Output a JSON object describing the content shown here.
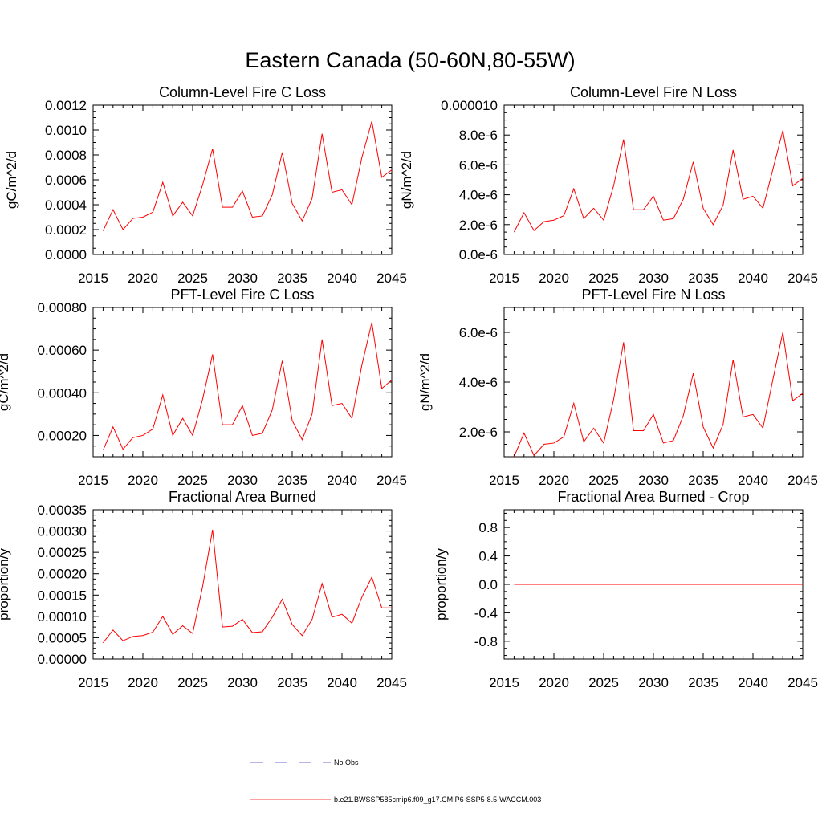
{
  "figure": {
    "title": "Eastern Canada (50-60N,80-55W)"
  },
  "legend": [
    {
      "label": "No Obs",
      "color": "#3c3cc8",
      "style": "dashed"
    },
    {
      "label": "b.e21.BWSSP585cmip6.f09_g17.CMIP6-SSP5-8.5-WACCM.003",
      "color": "#ff0000",
      "style": "solid"
    }
  ],
  "chart_data": [
    {
      "type": "line",
      "title": "Column-Level Fire C Loss",
      "xlabel": "",
      "ylabel": "gC/m^2/d",
      "xlim": [
        2015,
        2045
      ],
      "ylim": [
        0,
        0.0012
      ],
      "xticks": [
        2015,
        2020,
        2025,
        2030,
        2035,
        2040,
        2045
      ],
      "yticks": [
        0,
        0.0002,
        0.0004,
        0.0006,
        0.0008,
        0.001,
        0.0012
      ],
      "yticklabels": [
        "0.0000",
        "0.0002",
        "0.0004",
        "0.0006",
        "0.0008",
        "0.0010",
        "0.0012"
      ],
      "x": [
        2016,
        2017,
        2018,
        2019,
        2020,
        2021,
        2022,
        2023,
        2024,
        2025,
        2026,
        2027,
        2028,
        2029,
        2030,
        2031,
        2032,
        2033,
        2034,
        2035,
        2036,
        2037,
        2038,
        2039,
        2040,
        2041,
        2042,
        2043,
        2044,
        2045
      ],
      "series": [
        {
          "name": "b.e21.BWSSP585cmip6.f09_g17.CMIP6-SSP5-8.5-WACCM.003",
          "color": "#ff0000",
          "values": [
            0.00019,
            0.00036,
            0.0002,
            0.00029,
            0.0003,
            0.00034,
            0.00058,
            0.00031,
            0.00042,
            0.00031,
            0.00056,
            0.00085,
            0.00038,
            0.00038,
            0.00051,
            0.0003,
            0.00031,
            0.00048,
            0.00082,
            0.00041,
            0.00027,
            0.00045,
            0.00097,
            0.0005,
            0.00052,
            0.0004,
            0.00078,
            0.00107,
            0.00062,
            0.00068
          ]
        }
      ]
    },
    {
      "type": "line",
      "title": "Column-Level Fire N Loss",
      "xlabel": "",
      "ylabel": "gN/m^2/d",
      "xlim": [
        2015,
        2045
      ],
      "ylim": [
        0,
        1e-05
      ],
      "xticks": [
        2015,
        2020,
        2025,
        2030,
        2035,
        2040,
        2045
      ],
      "yticks": [
        0,
        2e-06,
        4e-06,
        6e-06,
        8e-06,
        1e-05
      ],
      "yticklabels": [
        "0.0e-6",
        "2.0e-6",
        "4.0e-6",
        "6.0e-6",
        "8.0e-6",
        "0.000010"
      ],
      "x": [
        2016,
        2017,
        2018,
        2019,
        2020,
        2021,
        2022,
        2023,
        2024,
        2025,
        2026,
        2027,
        2028,
        2029,
        2030,
        2031,
        2032,
        2033,
        2034,
        2035,
        2036,
        2037,
        2038,
        2039,
        2040,
        2041,
        2042,
        2043,
        2044,
        2045
      ],
      "series": [
        {
          "name": "b.e21.BWSSP585cmip6.f09_g17.CMIP6-SSP5-8.5-WACCM.003",
          "color": "#ff0000",
          "values": [
            1.5e-06,
            2.8e-06,
            1.6e-06,
            2.2e-06,
            2.3e-06,
            2.6e-06,
            4.4e-06,
            2.4e-06,
            3.1e-06,
            2.3e-06,
            4.6e-06,
            7.7e-06,
            3e-06,
            3e-06,
            3.9e-06,
            2.3e-06,
            2.4e-06,
            3.7e-06,
            6.2e-06,
            3.1e-06,
            2e-06,
            3.3e-06,
            7e-06,
            3.7e-06,
            3.9e-06,
            3.1e-06,
            5.7e-06,
            8.3e-06,
            4.6e-06,
            5.1e-06
          ]
        }
      ]
    },
    {
      "type": "line",
      "title": "PFT-Level Fire C Loss",
      "xlabel": "",
      "ylabel": "gC/m^2/d",
      "xlim": [
        2015,
        2045
      ],
      "ylim": [
        0.0001,
        0.0008
      ],
      "xticks": [
        2015,
        2020,
        2025,
        2030,
        2035,
        2040,
        2045
      ],
      "yticks": [
        0.0002,
        0.0004,
        0.0006,
        0.0008
      ],
      "yticklabels": [
        "0.00020",
        "0.00040",
        "0.00060",
        "0.00080"
      ],
      "x": [
        2016,
        2017,
        2018,
        2019,
        2020,
        2021,
        2022,
        2023,
        2024,
        2025,
        2026,
        2027,
        2028,
        2029,
        2030,
        2031,
        2032,
        2033,
        2034,
        2035,
        2036,
        2037,
        2038,
        2039,
        2040,
        2041,
        2042,
        2043,
        2044,
        2045
      ],
      "series": [
        {
          "name": "b.e21.BWSSP585cmip6.f09_g17.CMIP6-SSP5-8.5-WACCM.003",
          "color": "#ff0000",
          "values": [
            0.00013,
            0.00024,
            0.000135,
            0.00019,
            0.0002,
            0.00023,
            0.00039,
            0.0002,
            0.00028,
            0.0002,
            0.00037,
            0.00058,
            0.00025,
            0.00025,
            0.00034,
            0.0002,
            0.00021,
            0.00032,
            0.00055,
            0.00027,
            0.00018,
            0.0003,
            0.00065,
            0.00034,
            0.00035,
            0.00028,
            0.00053,
            0.00073,
            0.00042,
            0.00046
          ]
        }
      ]
    },
    {
      "type": "line",
      "title": "PFT-Level Fire N Loss",
      "xlabel": "",
      "ylabel": "gN/m^2/d",
      "xlim": [
        2015,
        2045
      ],
      "ylim": [
        1e-06,
        7e-06
      ],
      "xticks": [
        2015,
        2020,
        2025,
        2030,
        2035,
        2040,
        2045
      ],
      "yticks": [
        2e-06,
        4e-06,
        6e-06
      ],
      "yticklabels": [
        "2.0e-6",
        "4.0e-6",
        "6.0e-6"
      ],
      "x": [
        2016,
        2017,
        2018,
        2019,
        2020,
        2021,
        2022,
        2023,
        2024,
        2025,
        2026,
        2027,
        2028,
        2029,
        2030,
        2031,
        2032,
        2033,
        2034,
        2035,
        2036,
        2037,
        2038,
        2039,
        2040,
        2041,
        2042,
        2043,
        2044,
        2045
      ],
      "series": [
        {
          "name": "b.e21.BWSSP585cmip6.f09_g17.CMIP6-SSP5-8.5-WACCM.003",
          "color": "#ff0000",
          "values": [
            1e-06,
            1.95e-06,
            1.05e-06,
            1.5e-06,
            1.55e-06,
            1.8e-06,
            3.15e-06,
            1.6e-06,
            2.15e-06,
            1.55e-06,
            3.3e-06,
            5.6e-06,
            2.05e-06,
            2.05e-06,
            2.7e-06,
            1.55e-06,
            1.65e-06,
            2.65e-06,
            4.35e-06,
            2.2e-06,
            1.35e-06,
            2.3e-06,
            4.9e-06,
            2.6e-06,
            2.7e-06,
            2.15e-06,
            4.1e-06,
            6e-06,
            3.25e-06,
            3.55e-06
          ]
        }
      ]
    },
    {
      "type": "line",
      "title": "Fractional Area Burned",
      "xlabel": "",
      "ylabel": "proportion/y",
      "xlim": [
        2015,
        2045
      ],
      "ylim": [
        0,
        0.00035
      ],
      "xticks": [
        2015,
        2020,
        2025,
        2030,
        2035,
        2040,
        2045
      ],
      "yticks": [
        0,
        5e-05,
        0.0001,
        0.00015,
        0.0002,
        0.00025,
        0.0003,
        0.00035
      ],
      "yticklabels": [
        "0.00000",
        "0.00005",
        "0.00010",
        "0.00015",
        "0.00020",
        "0.00025",
        "0.00030",
        "0.00035"
      ],
      "x": [
        2016,
        2017,
        2018,
        2019,
        2020,
        2021,
        2022,
        2023,
        2024,
        2025,
        2026,
        2027,
        2028,
        2029,
        2030,
        2031,
        2032,
        2033,
        2034,
        2035,
        2036,
        2037,
        2038,
        2039,
        2040,
        2041,
        2042,
        2043,
        2044,
        2045
      ],
      "series": [
        {
          "name": "b.e21.BWSSP585cmip6.f09_g17.CMIP6-SSP5-8.5-WACCM.003",
          "color": "#ff0000",
          "values": [
            3.8e-05,
            6.8e-05,
            4.3e-05,
            5.3e-05,
            5.5e-05,
            6.3e-05,
            0.0001,
            5.8e-05,
            7.8e-05,
            6e-05,
            0.00017,
            0.000303,
            7.5e-05,
            7.7e-05,
            9.3e-05,
            6.2e-05,
            6.4e-05,
            9.8e-05,
            0.00014,
            8.1e-05,
            5.5e-05,
            9.3e-05,
            0.000177,
            9.8e-05,
            0.000105,
            8.4e-05,
            0.000145,
            0.000192,
            0.00012,
            0.00012
          ]
        }
      ]
    },
    {
      "type": "line",
      "title": "Fractional Area Burned - Crop",
      "xlabel": "",
      "ylabel": "proportion/y",
      "xlim": [
        2015,
        2045
      ],
      "ylim": [
        -1.05,
        1.05
      ],
      "xticks": [
        2015,
        2020,
        2025,
        2030,
        2035,
        2040,
        2045
      ],
      "yticks": [
        -0.8,
        -0.4,
        0,
        0.4,
        0.8
      ],
      "yticklabels": [
        "-0.8",
        "-0.4",
        "0.0",
        "0.4",
        "0.8"
      ],
      "x": [
        2016,
        2017,
        2018,
        2019,
        2020,
        2021,
        2022,
        2023,
        2024,
        2025,
        2026,
        2027,
        2028,
        2029,
        2030,
        2031,
        2032,
        2033,
        2034,
        2035,
        2036,
        2037,
        2038,
        2039,
        2040,
        2041,
        2042,
        2043,
        2044,
        2045
      ],
      "series": [
        {
          "name": "b.e21.BWSSP585cmip6.f09_g17.CMIP6-SSP5-8.5-WACCM.003",
          "color": "#ff0000",
          "values": [
            0,
            0,
            0,
            0,
            0,
            0,
            0,
            0,
            0,
            0,
            0,
            0,
            0,
            0,
            0,
            0,
            0,
            0,
            0,
            0,
            0,
            0,
            0,
            0,
            0,
            0,
            0,
            0,
            0,
            0
          ]
        }
      ]
    }
  ]
}
